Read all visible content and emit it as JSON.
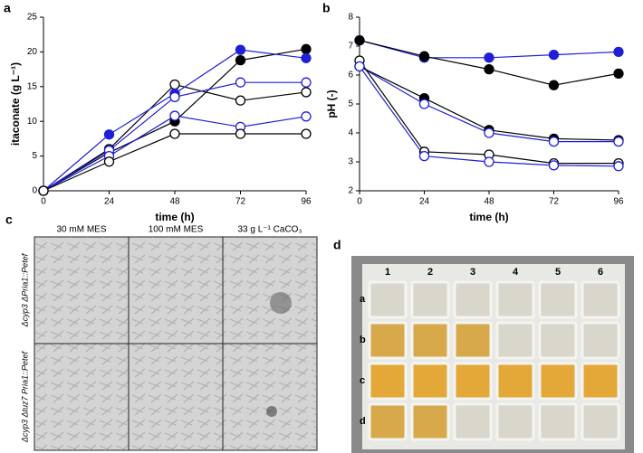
{
  "chart_data": [
    {
      "type": "line",
      "panel_label": "a",
      "ylabel": "itaconate (g L⁻¹)",
      "xlabel": "time (h)",
      "x": [
        0,
        24,
        48,
        72,
        96
      ],
      "xlim": [
        0,
        96
      ],
      "xticks": [
        0,
        24,
        48,
        72,
        96
      ],
      "ylim": [
        0,
        25
      ],
      "yticks": [
        0,
        5,
        10,
        15,
        20,
        25
      ],
      "series": [
        {
          "color": "#000000",
          "marker": "filled",
          "values": [
            0,
            5.5,
            10.0,
            18.8,
            20.4
          ]
        },
        {
          "color": "#000000",
          "marker": "open",
          "values": [
            0,
            6.0,
            15.3,
            13.0,
            14.2
          ]
        },
        {
          "color": "#1f1fd6",
          "marker": "filled",
          "values": [
            0,
            8.1,
            14.0,
            20.3,
            19.1
          ]
        },
        {
          "color": "#1f1fd6",
          "marker": "open",
          "values": [
            0,
            5.8,
            13.5,
            15.6,
            15.6
          ]
        },
        {
          "color": "#1f1fd6",
          "marker": "open",
          "values": [
            0,
            5.0,
            10.8,
            9.2,
            10.7
          ]
        },
        {
          "color": "#000000",
          "marker": "open",
          "values": [
            0,
            4.2,
            8.2,
            8.2,
            8.2
          ]
        }
      ]
    },
    {
      "type": "line",
      "panel_label": "b",
      "ylabel": "pH (-)",
      "xlabel": "time (h)",
      "x": [
        0,
        24,
        48,
        72,
        96
      ],
      "xlim": [
        0,
        96
      ],
      "xticks": [
        0,
        24,
        48,
        72,
        96
      ],
      "ylim": [
        2,
        8
      ],
      "yticks": [
        2,
        3,
        4,
        5,
        6,
        7,
        8
      ],
      "series": [
        {
          "color": "#1f1fd6",
          "marker": "filled",
          "values": [
            7.2,
            6.6,
            6.6,
            6.7,
            6.8
          ]
        },
        {
          "color": "#000000",
          "marker": "filled",
          "values": [
            7.2,
            6.65,
            6.2,
            5.65,
            6.05
          ]
        },
        {
          "color": "#000000",
          "marker": "filled",
          "values": [
            6.3,
            5.2,
            4.1,
            3.8,
            3.75
          ]
        },
        {
          "color": "#1f1fd6",
          "marker": "open",
          "values": [
            6.3,
            5.0,
            4.0,
            3.7,
            3.7
          ]
        },
        {
          "color": "#000000",
          "marker": "open",
          "values": [
            6.5,
            3.35,
            3.25,
            2.95,
            2.95
          ]
        },
        {
          "color": "#1f1fd6",
          "marker": "open",
          "values": [
            6.3,
            3.2,
            3.0,
            2.88,
            2.85
          ]
        }
      ]
    }
  ],
  "microscopy": {
    "label": "c",
    "columns": [
      "30 mM MES",
      "100 mM MES",
      "33 g L⁻¹ CaCO₃"
    ],
    "rows": [
      "Δcyp3 ΔPria1::Petef",
      "Δcyp3 Δtuz7 Pria1::Petef"
    ]
  },
  "plate": {
    "label": "d",
    "columns": [
      "1",
      "2",
      "3",
      "4",
      "5",
      "6"
    ],
    "rows": [
      "a",
      "b",
      "c",
      "d"
    ]
  }
}
